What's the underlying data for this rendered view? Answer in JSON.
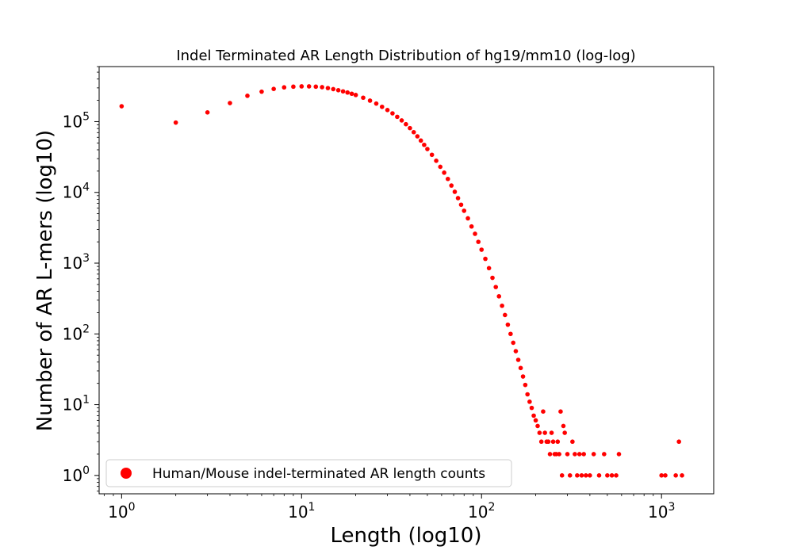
{
  "chart_data": {
    "type": "scatter",
    "title": "Indel Terminated AR Length Distribution of hg19/mm10 (log-log)",
    "xlabel": "Length (log10)",
    "ylabel": "Number of AR L-mers (log10)",
    "xscale": "log",
    "yscale": "log",
    "xlim": [
      0.75,
      1950
    ],
    "ylim": [
      0.55,
      600000
    ],
    "xticks": [
      {
        "value": 1,
        "base": "10",
        "exp": "0"
      },
      {
        "value": 10,
        "base": "10",
        "exp": "1"
      },
      {
        "value": 100,
        "base": "10",
        "exp": "2"
      },
      {
        "value": 1000,
        "base": "10",
        "exp": "3"
      }
    ],
    "yticks": [
      {
        "value": 1,
        "base": "10",
        "exp": "0"
      },
      {
        "value": 10,
        "base": "10",
        "exp": "1"
      },
      {
        "value": 100,
        "base": "10",
        "exp": "2"
      },
      {
        "value": 1000,
        "base": "10",
        "exp": "3"
      },
      {
        "value": 10000,
        "base": "10",
        "exp": "4"
      },
      {
        "value": 100000,
        "base": "10",
        "exp": "5"
      }
    ],
    "grid": false,
    "legend_position": "lower-left",
    "color": "#ff0000",
    "series": [
      {
        "name": "Human/Mouse indel-terminated AR length counts",
        "points": [
          [
            1,
            165000
          ],
          [
            2,
            97000
          ],
          [
            3,
            135000
          ],
          [
            4,
            183000
          ],
          [
            5,
            232000
          ],
          [
            6,
            265000
          ],
          [
            7,
            290000
          ],
          [
            8,
            305000
          ],
          [
            9,
            312000
          ],
          [
            10,
            315000
          ],
          [
            11,
            315000
          ],
          [
            12,
            312000
          ],
          [
            13,
            307000
          ],
          [
            14,
            298000
          ],
          [
            15,
            288000
          ],
          [
            16,
            278000
          ],
          [
            17,
            268000
          ],
          [
            18,
            258000
          ],
          [
            19,
            248000
          ],
          [
            20,
            238000
          ],
          [
            22,
            218000
          ],
          [
            24,
            198000
          ],
          [
            26,
            180000
          ],
          [
            28,
            162000
          ],
          [
            30,
            146000
          ],
          [
            32,
            131000
          ],
          [
            34,
            117000
          ],
          [
            36,
            104000
          ],
          [
            38,
            92000
          ],
          [
            40,
            81000
          ],
          [
            42,
            71000
          ],
          [
            44,
            62000
          ],
          [
            46,
            54000
          ],
          [
            48,
            47000
          ],
          [
            50,
            41000
          ],
          [
            53,
            34000
          ],
          [
            56,
            28000
          ],
          [
            59,
            23000
          ],
          [
            62,
            19000
          ],
          [
            65,
            15500
          ],
          [
            68,
            12500
          ],
          [
            71,
            10200
          ],
          [
            74,
            8300
          ],
          [
            77,
            6700
          ],
          [
            80,
            5500
          ],
          [
            84,
            4300
          ],
          [
            88,
            3300
          ],
          [
            92,
            2600
          ],
          [
            96,
            2000
          ],
          [
            100,
            1550
          ],
          [
            105,
            1150
          ],
          [
            110,
            850
          ],
          [
            115,
            620
          ],
          [
            120,
            460
          ],
          [
            125,
            340
          ],
          [
            130,
            250
          ],
          [
            135,
            185
          ],
          [
            140,
            135
          ],
          [
            145,
            100
          ],
          [
            150,
            75
          ],
          [
            155,
            57
          ],
          [
            160,
            43
          ],
          [
            165,
            33
          ],
          [
            170,
            25
          ],
          [
            175,
            19
          ],
          [
            180,
            14
          ],
          [
            185,
            11
          ],
          [
            190,
            9
          ],
          [
            195,
            7
          ],
          [
            200,
            6
          ],
          [
            205,
            5
          ],
          [
            210,
            4
          ],
          [
            215,
            3
          ],
          [
            220,
            8
          ],
          [
            225,
            4
          ],
          [
            230,
            3
          ],
          [
            235,
            3
          ],
          [
            240,
            2
          ],
          [
            245,
            4
          ],
          [
            250,
            3
          ],
          [
            255,
            2
          ],
          [
            260,
            2
          ],
          [
            265,
            3
          ],
          [
            270,
            2
          ],
          [
            275,
            8
          ],
          [
            280,
            1
          ],
          [
            285,
            5
          ],
          [
            290,
            4
          ],
          [
            300,
            2
          ],
          [
            310,
            1
          ],
          [
            320,
            3
          ],
          [
            330,
            2
          ],
          [
            340,
            1
          ],
          [
            350,
            2
          ],
          [
            360,
            1
          ],
          [
            370,
            2
          ],
          [
            380,
            1
          ],
          [
            400,
            1
          ],
          [
            420,
            2
          ],
          [
            450,
            1
          ],
          [
            480,
            2
          ],
          [
            500,
            1
          ],
          [
            530,
            1
          ],
          [
            560,
            1
          ],
          [
            580,
            2
          ],
          [
            1000,
            1
          ],
          [
            1050,
            1
          ],
          [
            1200,
            1
          ],
          [
            1250,
            3
          ],
          [
            1300,
            1
          ]
        ]
      }
    ]
  }
}
